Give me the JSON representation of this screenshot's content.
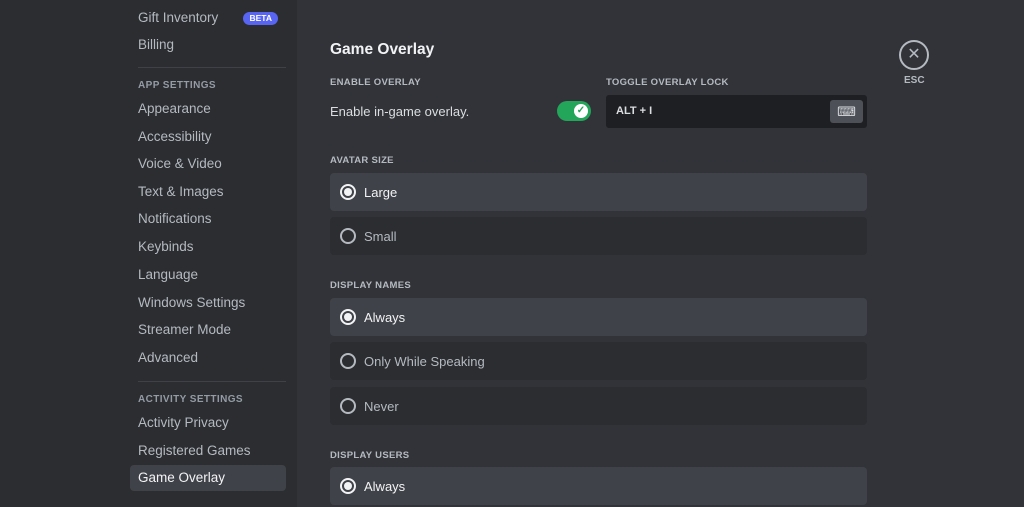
{
  "sidebar": {
    "items_top": [
      {
        "label": "Gift Inventory",
        "badge": "BETA"
      },
      {
        "label": "Billing"
      }
    ],
    "app_settings_header": "APP SETTINGS",
    "app_items": [
      "Appearance",
      "Accessibility",
      "Voice & Video",
      "Text & Images",
      "Notifications",
      "Keybinds",
      "Language",
      "Windows Settings",
      "Streamer Mode",
      "Advanced"
    ],
    "activity_header": "ACTIVITY SETTINGS",
    "activity_items": [
      "Activity Privacy",
      "Registered Games",
      "Game Overlay"
    ],
    "active_item": "Game Overlay"
  },
  "main": {
    "title": "Game Overlay",
    "enable_overlay_label": "ENABLE OVERLAY",
    "enable_overlay_text": "Enable in-game overlay.",
    "enable_overlay_on": true,
    "toggle_lock_label": "TOGGLE OVERLAY LOCK",
    "toggle_lock_value": "ALT + I",
    "avatar_size": {
      "label": "AVATAR SIZE",
      "options": [
        "Large",
        "Small"
      ],
      "selected": "Large"
    },
    "display_names": {
      "label": "DISPLAY NAMES",
      "options": [
        "Always",
        "Only While Speaking",
        "Never"
      ],
      "selected": "Always"
    },
    "display_users": {
      "label": "DISPLAY USERS",
      "options": [
        "Always"
      ],
      "selected": "Always"
    }
  },
  "close": {
    "label": "ESC",
    "icon": "close-icon"
  },
  "colors": {
    "accent": "#5865f2",
    "toggle_on": "#23a55a"
  }
}
